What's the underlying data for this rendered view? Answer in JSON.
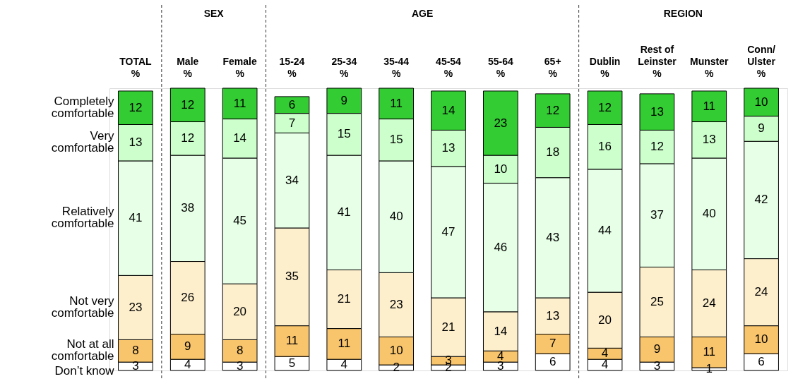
{
  "chart_data": {
    "type": "bar",
    "stacked": true,
    "data_labels": true,
    "legend": "left",
    "annotations": [
      "SEX",
      "AGE",
      "REGION"
    ],
    "categories": [
      "TOTAL\n%",
      "Male\n%",
      "Female\n%",
      "15-24\n%",
      "25-34\n%",
      "35-44\n%",
      "45-54\n%",
      "55-64\n%",
      "65+\n%",
      "Dublin\n%",
      "Rest of\nLeinster\n%",
      "Munster\n%",
      "Conn/\nUlster\n%"
    ],
    "series": [
      {
        "name": "Don’t know",
        "color": "#ffffff",
        "values": [
          3,
          4,
          3,
          5,
          4,
          2,
          2,
          3,
          6,
          4,
          3,
          1,
          6
        ]
      },
      {
        "name": "Not at all\ncomfortable",
        "color": "#f8c46c",
        "values": [
          8,
          9,
          8,
          11,
          11,
          10,
          3,
          4,
          7,
          4,
          9,
          11,
          10
        ]
      },
      {
        "name": "Not very\ncomfortable",
        "color": "#fdefcc",
        "values": [
          23,
          26,
          20,
          35,
          21,
          23,
          21,
          14,
          13,
          20,
          25,
          24,
          24
        ]
      },
      {
        "name": "Relatively\ncomfortable",
        "color": "#e6ffe6",
        "values": [
          41,
          38,
          45,
          34,
          41,
          40,
          47,
          46,
          43,
          44,
          37,
          40,
          42
        ]
      },
      {
        "name": "Very\ncomfortable",
        "color": "#ccffcc",
        "values": [
          13,
          12,
          14,
          7,
          15,
          15,
          13,
          10,
          18,
          16,
          12,
          13,
          9
        ]
      },
      {
        "name": "Completely\ncomfortable",
        "color": "#33cc33",
        "values": [
          12,
          12,
          11,
          6,
          9,
          11,
          14,
          23,
          12,
          12,
          13,
          11,
          10
        ]
      }
    ]
  }
}
